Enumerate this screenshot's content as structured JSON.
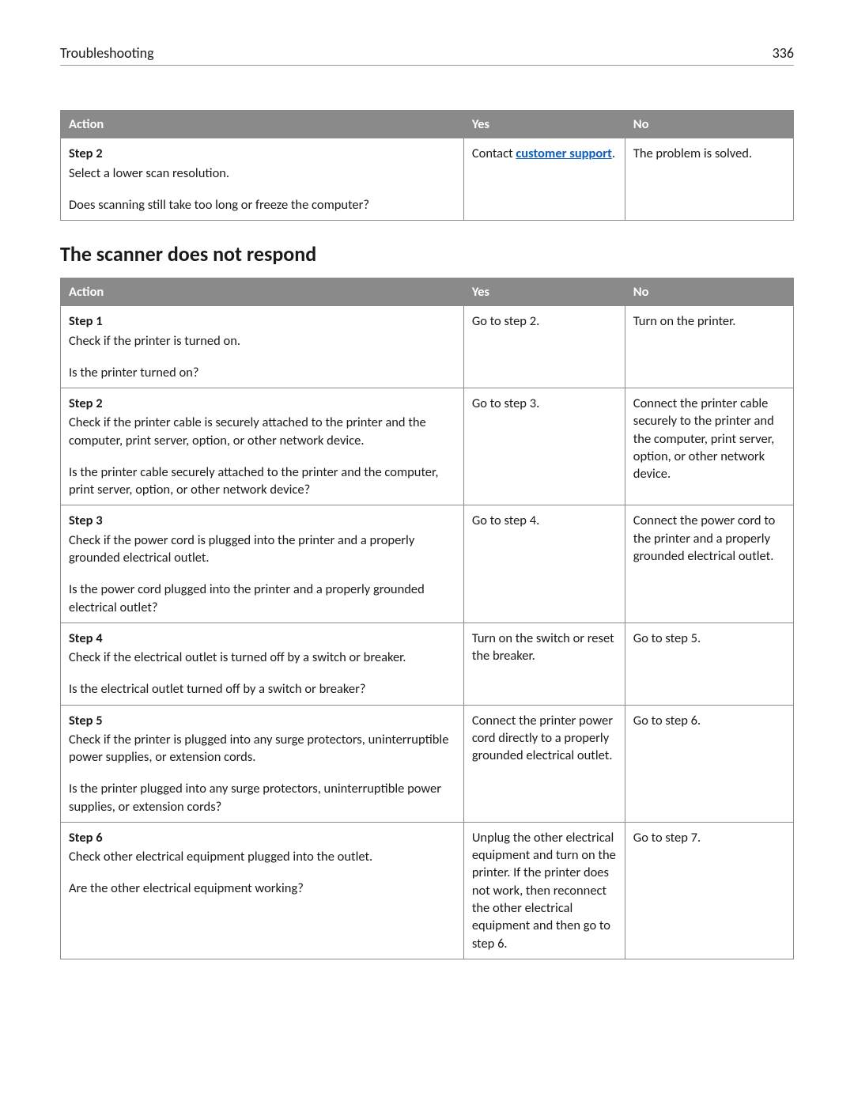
{
  "header": {
    "section": "Troubleshooting",
    "page_number": "336"
  },
  "table1": {
    "columns": {
      "action": "Action",
      "yes": "Yes",
      "no": "No"
    },
    "rows": [
      {
        "step": "Step 2",
        "desc": "Select a lower scan resolution.",
        "question": "Does scanning still take too long or freeze the computer?",
        "yes_prefix": "Contact ",
        "yes_link": "customer support",
        "yes_suffix": ".",
        "no": "The problem is solved."
      }
    ]
  },
  "section2_title": "The scanner does not respond",
  "table2": {
    "columns": {
      "action": "Action",
      "yes": "Yes",
      "no": "No"
    },
    "rows": [
      {
        "step": "Step 1",
        "desc": "Check if the printer is turned on.",
        "question": "Is the printer turned on?",
        "yes": "Go to step 2.",
        "no": "Turn on the printer."
      },
      {
        "step": "Step 2",
        "desc": "Check if the printer cable is securely attached to the printer and the computer, print server, option, or other network device.",
        "question": "Is the printer cable securely attached to the printer and the computer, print server, option, or other network device?",
        "yes": "Go to step 3.",
        "no": "Connect the printer cable securely to the printer and the computer, print server, option, or other network device."
      },
      {
        "step": "Step 3",
        "desc": "Check if the power cord is plugged into the printer and a properly grounded electrical outlet.",
        "question": "Is the power cord plugged into the printer and a properly grounded electrical outlet?",
        "yes": "Go to step 4.",
        "no": "Connect the power cord to the printer and a properly grounded electrical outlet."
      },
      {
        "step": "Step 4",
        "desc": "Check if the electrical outlet is turned off by a switch or breaker.",
        "question": "Is the electrical outlet turned off by a switch or breaker?",
        "yes": "Turn on the switch or reset the breaker.",
        "no": "Go to step 5."
      },
      {
        "step": "Step 5",
        "desc": "Check if the printer is plugged into any surge protectors, uninterruptible power supplies, or extension cords.",
        "question": "Is the printer plugged into any surge protectors, uninterruptible power supplies, or extension cords?",
        "yes": "Connect the printer power cord directly to a properly grounded electrical outlet.",
        "no": "Go to step 6."
      },
      {
        "step": "Step 6",
        "desc": "Check other electrical equipment plugged into the outlet.",
        "question": "Are the other electrical equipment working?",
        "yes": "Unplug the other electrical equipment and turn on the printer. If the printer does not work, then reconnect the other electrical equipment and then go to step 6.",
        "no": "Go to step 7."
      }
    ]
  }
}
